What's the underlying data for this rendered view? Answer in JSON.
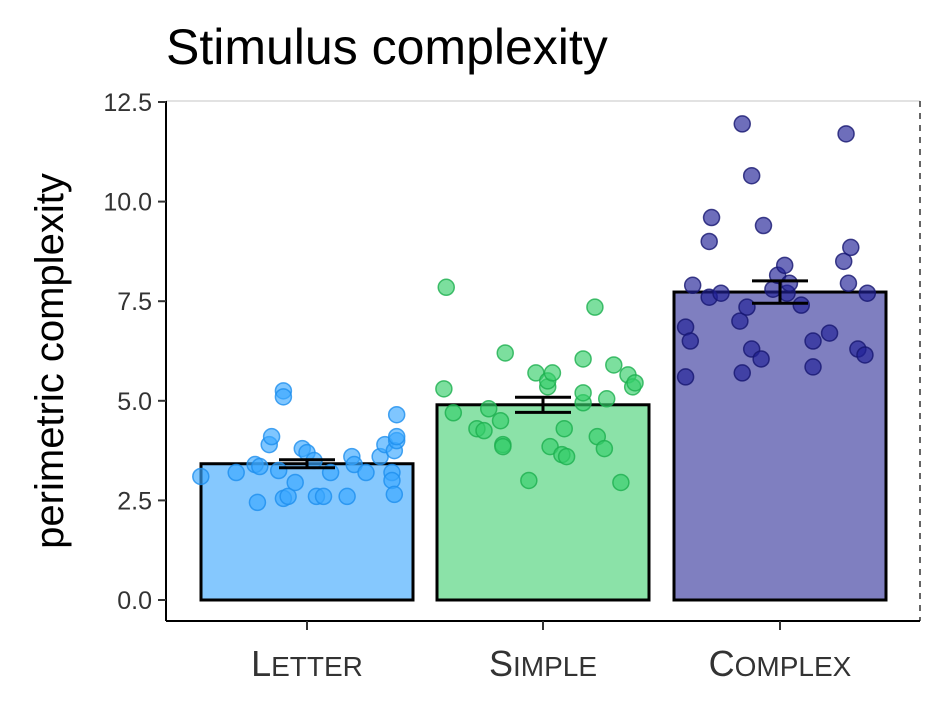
{
  "chart_data": {
    "type": "bar",
    "title": "Stimulus complexity",
    "xlabel": "",
    "ylabel": "perimetric complexity",
    "ylim": [
      -0.5,
      12.5
    ],
    "yticks": [
      0.0,
      2.5,
      5.0,
      7.5,
      10.0,
      12.5
    ],
    "ytick_labels": [
      "0.0",
      "2.5",
      "5.0",
      "7.5",
      "10.0",
      "12.5"
    ],
    "grid": false,
    "legend": "none",
    "categories": [
      {
        "first": "L",
        "rest": "ETTER"
      },
      {
        "first": "S",
        "rest": "IMPLE"
      },
      {
        "first": "C",
        "rest": "OMPLEX"
      }
    ],
    "values": [
      3.42,
      4.9,
      7.73
    ],
    "error": [
      0.1,
      0.19,
      0.28
    ],
    "colors": {
      "bar_fills": [
        "#85C8FE",
        "#8BE2A8",
        "#7F7FC0"
      ],
      "point_fills": [
        "#3BA8FF",
        "#35CE6A",
        "#212196"
      ],
      "point_strokes": [
        "#1E8FEE",
        "#1DAF4F",
        "#161670"
      ]
    },
    "points": [
      [
        {
          "x": -0.45,
          "y": 3.1
        },
        {
          "x": -0.3,
          "y": 3.2
        },
        {
          "x": -0.22,
          "y": 3.4
        },
        {
          "x": -0.2,
          "y": 3.35
        },
        {
          "x": -0.21,
          "y": 2.45
        },
        {
          "x": -0.16,
          "y": 3.9
        },
        {
          "x": -0.15,
          "y": 4.1
        },
        {
          "x": -0.12,
          "y": 3.25
        },
        {
          "x": -0.1,
          "y": 2.55
        },
        {
          "x": -0.08,
          "y": 2.6
        },
        {
          "x": -0.1,
          "y": 5.25
        },
        {
          "x": -0.1,
          "y": 5.1
        },
        {
          "x": -0.05,
          "y": 2.95
        },
        {
          "x": -0.02,
          "y": 3.8
        },
        {
          "x": 0.0,
          "y": 3.7
        },
        {
          "x": 0.03,
          "y": 3.5
        },
        {
          "x": 0.04,
          "y": 2.6
        },
        {
          "x": 0.07,
          "y": 2.6
        },
        {
          "x": 0.1,
          "y": 3.2
        },
        {
          "x": 0.17,
          "y": 2.6
        },
        {
          "x": 0.19,
          "y": 3.6
        },
        {
          "x": 0.2,
          "y": 3.4
        },
        {
          "x": 0.25,
          "y": 3.2
        },
        {
          "x": 0.31,
          "y": 3.6
        },
        {
          "x": 0.33,
          "y": 3.9
        },
        {
          "x": 0.36,
          "y": 3.2
        },
        {
          "x": 0.36,
          "y": 3.0
        },
        {
          "x": 0.37,
          "y": 2.65
        },
        {
          "x": 0.37,
          "y": 3.75
        },
        {
          "x": 0.38,
          "y": 4.0
        },
        {
          "x": 0.38,
          "y": 4.1
        },
        {
          "x": 0.38,
          "y": 4.65
        }
      ],
      [
        {
          "x": -0.41,
          "y": 7.85
        },
        {
          "x": -0.42,
          "y": 5.3
        },
        {
          "x": -0.38,
          "y": 4.7
        },
        {
          "x": -0.28,
          "y": 4.3
        },
        {
          "x": -0.25,
          "y": 4.25
        },
        {
          "x": -0.23,
          "y": 4.8
        },
        {
          "x": -0.18,
          "y": 4.5
        },
        {
          "x": -0.17,
          "y": 3.9
        },
        {
          "x": -0.17,
          "y": 3.85
        },
        {
          "x": -0.16,
          "y": 6.2
        },
        {
          "x": -0.06,
          "y": 3.0
        },
        {
          "x": -0.03,
          "y": 5.7
        },
        {
          "x": 0.02,
          "y": 5.35
        },
        {
          "x": 0.02,
          "y": 5.5
        },
        {
          "x": 0.03,
          "y": 3.85
        },
        {
          "x": 0.04,
          "y": 5.7
        },
        {
          "x": 0.08,
          "y": 3.65
        },
        {
          "x": 0.1,
          "y": 3.6
        },
        {
          "x": 0.09,
          "y": 4.3
        },
        {
          "x": 0.17,
          "y": 4.95
        },
        {
          "x": 0.17,
          "y": 5.2
        },
        {
          "x": 0.17,
          "y": 6.05
        },
        {
          "x": 0.22,
          "y": 7.35
        },
        {
          "x": 0.23,
          "y": 4.1
        },
        {
          "x": 0.26,
          "y": 3.8
        },
        {
          "x": 0.27,
          "y": 5.05
        },
        {
          "x": 0.3,
          "y": 5.9
        },
        {
          "x": 0.33,
          "y": 2.95
        },
        {
          "x": 0.36,
          "y": 5.65
        },
        {
          "x": 0.38,
          "y": 5.35
        },
        {
          "x": 0.39,
          "y": 5.45
        }
      ],
      [
        {
          "x": -0.4,
          "y": 5.6
        },
        {
          "x": -0.4,
          "y": 6.85
        },
        {
          "x": -0.38,
          "y": 6.5
        },
        {
          "x": -0.37,
          "y": 7.9
        },
        {
          "x": -0.3,
          "y": 7.6
        },
        {
          "x": -0.3,
          "y": 9.0
        },
        {
          "x": -0.29,
          "y": 9.6
        },
        {
          "x": -0.25,
          "y": 7.7
        },
        {
          "x": -0.17,
          "y": 7.0
        },
        {
          "x": -0.16,
          "y": 5.7
        },
        {
          "x": -0.16,
          "y": 11.95
        },
        {
          "x": -0.14,
          "y": 7.35
        },
        {
          "x": -0.12,
          "y": 6.3
        },
        {
          "x": -0.12,
          "y": 10.65
        },
        {
          "x": -0.08,
          "y": 6.05
        },
        {
          "x": -0.07,
          "y": 9.4
        },
        {
          "x": -0.03,
          "y": 7.8
        },
        {
          "x": -0.01,
          "y": 8.15
        },
        {
          "x": 0.02,
          "y": 8.4
        },
        {
          "x": 0.03,
          "y": 7.7
        },
        {
          "x": 0.04,
          "y": 7.95
        },
        {
          "x": 0.09,
          "y": 7.4
        },
        {
          "x": 0.14,
          "y": 5.85
        },
        {
          "x": 0.14,
          "y": 6.5
        },
        {
          "x": 0.21,
          "y": 6.7
        },
        {
          "x": 0.27,
          "y": 8.5
        },
        {
          "x": 0.28,
          "y": 11.7
        },
        {
          "x": 0.29,
          "y": 7.95
        },
        {
          "x": 0.3,
          "y": 8.85
        },
        {
          "x": 0.33,
          "y": 6.3
        },
        {
          "x": 0.36,
          "y": 6.15
        },
        {
          "x": 0.37,
          "y": 7.7
        }
      ]
    ]
  }
}
